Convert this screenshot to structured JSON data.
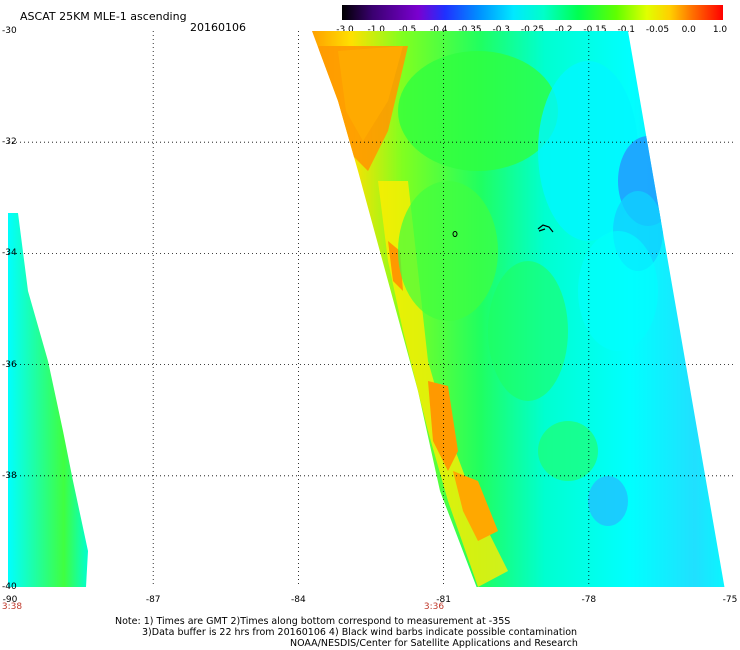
{
  "header": {
    "title": "ASCAT 25KM MLE-1 ascending",
    "date": "20160106"
  },
  "colorbar": {
    "ticks": [
      "-3.0",
      "-1.0",
      "-0.5",
      "-0.4",
      "-0.35",
      "-0.3",
      "-0.25",
      "-0.2",
      "-0.15",
      "-0.1",
      "-0.05",
      "0.0",
      "1.0"
    ],
    "colors": [
      "#000000",
      "#3a0070",
      "#7a00d0",
      "#2030ff",
      "#0090ff",
      "#00e0ff",
      "#00ffd0",
      "#00ff60",
      "#40ff00",
      "#c0ff00",
      "#ffff00",
      "#ffb000",
      "#ff5000",
      "#ff0000"
    ]
  },
  "map": {
    "lat_labels": [
      "-30",
      "-32",
      "-34",
      "-36",
      "-38",
      "-40"
    ],
    "lon_labels": [
      "-90",
      "-87",
      "-84",
      "-81",
      "-78",
      "-75"
    ],
    "time_labels": [
      "3:38",
      "3:36"
    ],
    "lat_range": [
      -40,
      -30
    ],
    "lon_range": [
      -90,
      -75
    ],
    "colors": {
      "orange": "#ffa500",
      "yellow": "#ffff20",
      "green": "#00ff40",
      "cyan": "#00ffff",
      "blue": "#3070ff",
      "grid": "#000000"
    }
  },
  "footer": {
    "line1": "Note: 1) Times are GMT 2)Times along bottom correspond to measurement at -35S",
    "line2": "3)Data buffer is 22 hrs from 20160106 4) Black wind barbs indicate possible contamination",
    "line3": "NOAA/NESDIS/Center for Satellite Applications and Research"
  }
}
